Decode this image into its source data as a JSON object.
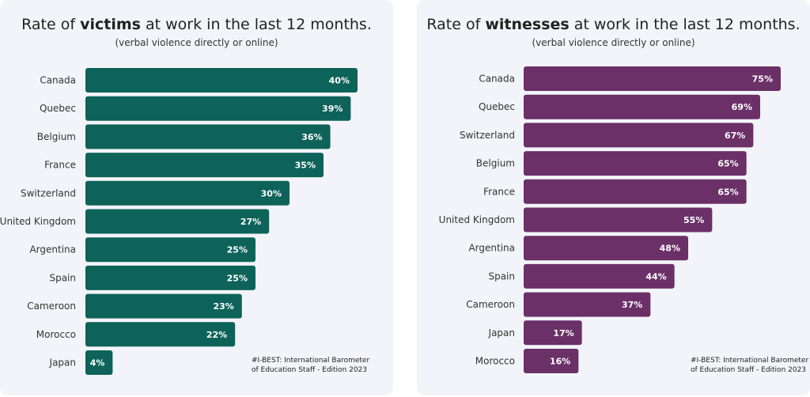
{
  "chart_data": [
    {
      "type": "bar",
      "orientation": "horizontal",
      "title_prefix": "Rate of ",
      "title_bold": "victims",
      "title_suffix": " at work in the last 12 months.",
      "subtitle": "(verbal violence directly or online)",
      "categories": [
        "Canada",
        "Quebec",
        "Belgium",
        "France",
        "Switzerland",
        "United Kingdom",
        "Argentina",
        "Spain",
        "Cameroon",
        "Morocco",
        "Japan"
      ],
      "values": [
        40,
        39,
        36,
        35,
        30,
        27,
        25,
        25,
        23,
        22,
        4
      ],
      "labels": [
        "40%",
        "39%",
        "36%",
        "35%",
        "30%",
        "27%",
        "25%",
        "25%",
        "23%",
        "22%",
        "4%"
      ],
      "xlim": [
        0,
        40
      ],
      "color": "#0d6359",
      "note": [
        "#I-BEST: International Barometer",
        "of Education Staff - Edition 2023"
      ]
    },
    {
      "type": "bar",
      "orientation": "horizontal",
      "title_prefix": "Rate of ",
      "title_bold": "witnesses",
      "title_suffix": " at work in the last 12 months.",
      "subtitle": "(verbal violence directly or online)",
      "categories": [
        "Canada",
        "Quebec",
        "Switzerland",
        "Belgium",
        "France",
        "United Kingdom",
        "Argentina",
        "Spain",
        "Cameroon",
        "Japan",
        "Morocco"
      ],
      "values": [
        75,
        69,
        67,
        65,
        65,
        55,
        48,
        44,
        37,
        17,
        16
      ],
      "labels": [
        "75%",
        "69%",
        "67%",
        "65%",
        "65%",
        "55%",
        "48%",
        "44%",
        "37%",
        "17%",
        "16%"
      ],
      "xlim": [
        0,
        75
      ],
      "color": "#6b3068",
      "note": [
        "#I-BEST: International Barometer",
        "of Education Staff - Edition 2023"
      ]
    }
  ]
}
